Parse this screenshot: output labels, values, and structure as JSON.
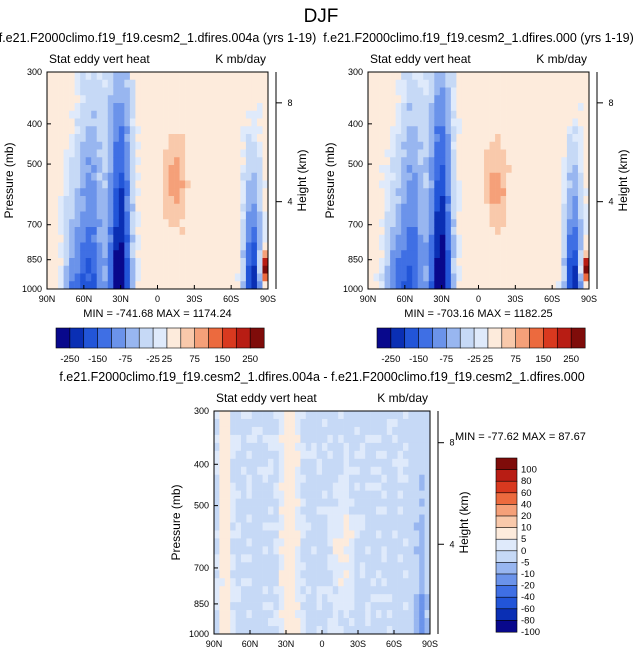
{
  "figure": {
    "title": "DJF"
  },
  "colors": {
    "abs_palette": [
      "#08088c",
      "#0a2fb4",
      "#2255d8",
      "#3f6fe4",
      "#6b93ea",
      "#98b6f0",
      "#c6d9f6",
      "#dfeafb",
      "#fdebdc",
      "#f9c9ab",
      "#f5a079",
      "#ec6a3e",
      "#d9391f",
      "#b81d14",
      "#7f0c0a"
    ],
    "diff_palette": [
      "#08088c",
      "#0a2fb4",
      "#2255d8",
      "#3f6fe4",
      "#6b93ea",
      "#98b6f0",
      "#c6d9f6",
      "#dfeafb",
      "#fdebdc",
      "#f9c9ab",
      "#f5a079",
      "#ec6a3e",
      "#d9391f",
      "#b81d14",
      "#7f0c0a"
    ]
  },
  "chart_data": [
    {
      "type": "heatmap",
      "title": "f.e21.F2000climo.f19_f19.cesm2_1.dfires.004a (yrs 1-19)",
      "left_label": "Stat eddy vert heat",
      "right_label": "K mb/day",
      "xlabel": "",
      "ylabel": "Pressure (mb)",
      "ylabel_right": "Height (km)",
      "x_ticks": [
        "90N",
        "60N",
        "30N",
        "0",
        "30S",
        "60S",
        "90S"
      ],
      "y_ticks": [
        "300",
        "400",
        "500",
        "700",
        "850",
        "1000"
      ],
      "y_ticks_right": [
        "8",
        "4"
      ],
      "ylim": [
        300,
        1000
      ],
      "y_scale": "log",
      "stats": "MIN = -741.68   MAX = 1174.24",
      "colorbar_labels": [
        "-250",
        "-150",
        "-75",
        "-25",
        "25",
        "75",
        "150",
        "250"
      ]
    },
    {
      "type": "heatmap",
      "title": "f.e21.F2000climo.f19_f19.cesm2_1.dfires.000 (yrs 1-19)",
      "left_label": "Stat eddy vert heat",
      "right_label": "K mb/day",
      "xlabel": "",
      "ylabel": "Pressure (mb)",
      "ylabel_right": "Height (km)",
      "x_ticks": [
        "90N",
        "60N",
        "30N",
        "0",
        "30S",
        "60S",
        "90S"
      ],
      "y_ticks": [
        "300",
        "400",
        "500",
        "700",
        "850",
        "1000"
      ],
      "y_ticks_right": [
        "8",
        "4"
      ],
      "ylim": [
        300,
        1000
      ],
      "y_scale": "log",
      "stats": "MIN = -703.16   MAX = 1182.25",
      "colorbar_labels": [
        "-250",
        "-150",
        "-75",
        "-25",
        "25",
        "75",
        "150",
        "250"
      ]
    },
    {
      "type": "heatmap",
      "title": "f.e21.F2000climo.f19_f19.cesm2_1.dfires.004a - f.e21.F2000climo.f19_f19.cesm2_1.dfires.000",
      "left_label": "Stat eddy vert heat",
      "right_label": "K mb/day",
      "xlabel": "",
      "ylabel": "Pressure (mb)",
      "ylabel_right": "Height (km)",
      "x_ticks": [
        "90N",
        "60N",
        "30N",
        "0",
        "30S",
        "60S",
        "90S"
      ],
      "y_ticks": [
        "300",
        "400",
        "500",
        "700",
        "850",
        "1000"
      ],
      "y_ticks_right": [
        "8",
        "4"
      ],
      "ylim": [
        300,
        1000
      ],
      "y_scale": "log",
      "stats": "MIN = -77.62   MAX = 87.67",
      "colorbar_labels": [
        "100",
        "80",
        "60",
        "40",
        "20",
        "10",
        "5",
        "0",
        "-5",
        "-10",
        "-20",
        "-40",
        "-60",
        "-80",
        "-100"
      ]
    }
  ]
}
